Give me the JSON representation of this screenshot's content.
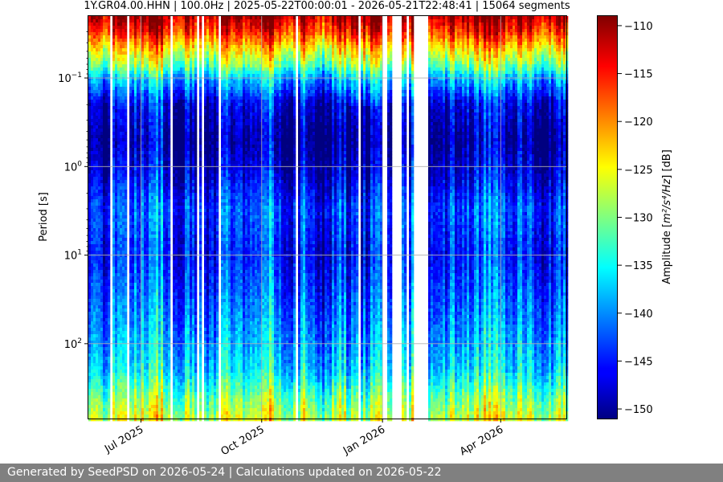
{
  "chart_data": {
    "type": "heatmap",
    "title": "1Y.GR04.00.HHN | 100.0Hz | 2025-05-22T00:00:01 - 2026-05-21T22:48:41 | 15064 segments",
    "xlabel": "",
    "ylabel": "Period [s]",
    "y_scale": "log",
    "y_inverted": true,
    "x_range": [
      "2025-05-22",
      "2026-05-21"
    ],
    "x_ticks": [
      {
        "date": "2025-07-01",
        "label": "Jul 2025"
      },
      {
        "date": "2025-10-01",
        "label": "Oct 2025"
      },
      {
        "date": "2026-01-01",
        "label": "Jan 2026"
      },
      {
        "date": "2026-04-01",
        "label": "Apr 2026"
      }
    ],
    "y_range": [
      0.02,
      700
    ],
    "y_ticks": [
      {
        "value": 0.1,
        "base": "10",
        "exp": "−1"
      },
      {
        "value": 1,
        "base": "10",
        "exp": "0"
      },
      {
        "value": 10,
        "base": "10",
        "exp": "1"
      },
      {
        "value": 100,
        "base": "10",
        "exp": "2"
      }
    ],
    "grid": true,
    "colorbar": {
      "label_prefix": "Amplitude [",
      "label_unit": "m²/s⁴/Hz",
      "label_suffix": "] [dB]",
      "range": [
        -151,
        -109
      ],
      "ticks": [
        {
          "value": -110,
          "label": "−110"
        },
        {
          "value": -115,
          "label": "−115"
        },
        {
          "value": -120,
          "label": "−120"
        },
        {
          "value": -125,
          "label": "−125"
        },
        {
          "value": -130,
          "label": "−130"
        },
        {
          "value": -135,
          "label": "−135"
        },
        {
          "value": -140,
          "label": "−140"
        },
        {
          "value": -145,
          "label": "−145"
        },
        {
          "value": -150,
          "label": "−150"
        }
      ],
      "colormap": "jet"
    },
    "period_profile": [
      {
        "period": 0.02,
        "db": -110
      },
      {
        "period": 0.03,
        "db": -115
      },
      {
        "period": 0.05,
        "db": -124
      },
      {
        "period": 0.07,
        "db": -129
      },
      {
        "period": 0.1,
        "db": -137
      },
      {
        "period": 0.2,
        "db": -146
      },
      {
        "period": 0.5,
        "db": -149
      },
      {
        "period": 1,
        "db": -147
      },
      {
        "period": 3,
        "db": -142
      },
      {
        "period": 10,
        "db": -144
      },
      {
        "period": 50,
        "db": -140
      },
      {
        "period": 200,
        "db": -136
      },
      {
        "period": 400,
        "db": -130
      },
      {
        "period": 700,
        "db": -126
      }
    ],
    "data_gaps": [
      {
        "start": "2026-01-01",
        "end": "2026-01-05"
      },
      {
        "start": "2026-01-08",
        "end": "2026-01-15"
      },
      {
        "start": "2026-01-20",
        "end": "2026-01-22"
      },
      {
        "start": "2026-01-25",
        "end": "2026-02-04"
      }
    ]
  },
  "footer": {
    "text": "Generated by SeedPSD on 2026-05-24 | Calculations updated on 2026-05-22"
  }
}
